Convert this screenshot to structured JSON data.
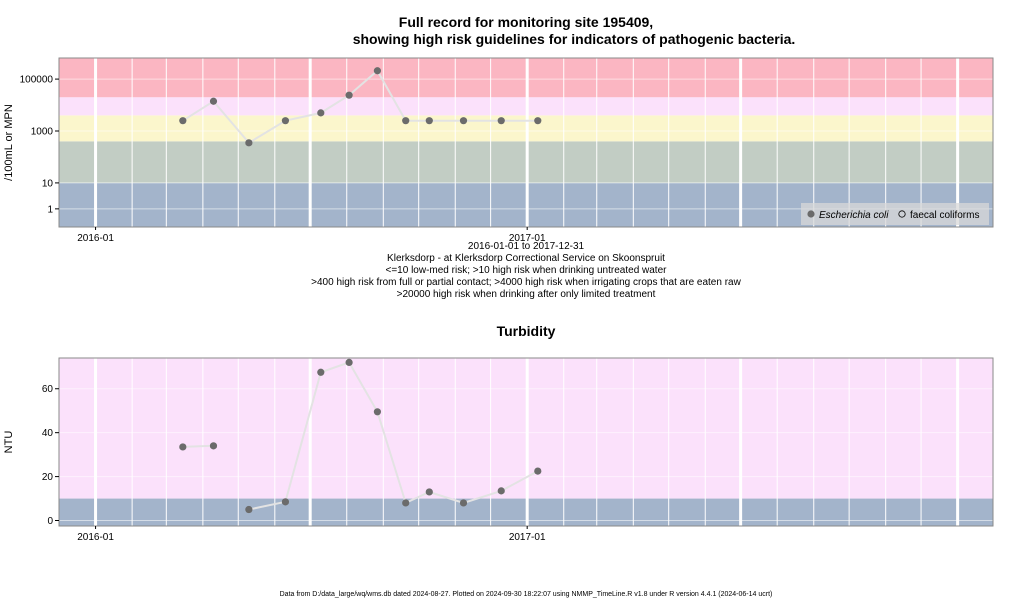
{
  "chart_data": [
    {
      "type": "scatter",
      "title_line1": "Full record for monitoring site 195409,",
      "title_line2": "showing high risk guidelines for indicators of pathogenic bacteria.",
      "ylabel": "/100mL or MPN",
      "y_scale": "log",
      "ylim": [
        0.2,
        650000
      ],
      "xlim": [
        "2015-12-01",
        "2018-01-31"
      ],
      "x_ticks": [
        {
          "date": "2016-01-01",
          "label": "2016-01",
          "label_shown": true
        },
        {
          "date": "2017-01-01",
          "label": "2017-01",
          "label_shown": true
        }
      ],
      "y_ticks": [
        {
          "value": 1,
          "label": "1"
        },
        {
          "value": 10,
          "label": "10"
        },
        {
          "value": 1000,
          "label": "1000"
        },
        {
          "value": 100000,
          "label": "100000"
        }
      ],
      "bands": [
        {
          "from": 0.2,
          "to": 10,
          "color": "#a3b4cb"
        },
        {
          "from": 10,
          "to": 400,
          "color": "#c2cdc4"
        },
        {
          "from": 400,
          "to": 4000,
          "color": "#fbf6cc"
        },
        {
          "from": 4000,
          "to": 20000,
          "color": "#fbe1fb"
        },
        {
          "from": 20000,
          "to": 650000,
          "color": "#fbb6c2"
        }
      ],
      "grid": true,
      "legend_position": "bottom-right",
      "series": [
        {
          "name": "Escherichia coli",
          "marker": "filled-circle",
          "color": "#6b6b6b",
          "line_color": "#e3e3e3",
          "x": [
            "2016-03-15",
            "2016-04-10",
            "2016-05-10",
            "2016-06-10",
            "2016-07-10",
            "2016-08-03",
            "2016-08-27",
            "2016-09-20",
            "2016-10-10",
            "2016-11-08",
            "2016-12-10",
            "2017-01-10"
          ],
          "y": [
            2500,
            14000,
            350,
            2500,
            5000,
            24000,
            210000,
            2500,
            2500,
            2500,
            2500,
            2500
          ]
        },
        {
          "name": "faecal coliforms",
          "marker": "open-circle",
          "color": "#000000",
          "x": [],
          "y": []
        }
      ],
      "annotations": [
        "2016-01-01 to 2017-12-31",
        "Klerksdorp - at Klerksdorp Correctional Service on Skoonspruit",
        "<=10 low-med risk; >10 high risk when drinking untreated water",
        ">400 high risk from full or partial contact; >4000 high risk when irrigating crops that are eaten raw",
        ">20000 high risk when drinking after only limited treatment"
      ]
    },
    {
      "type": "scatter",
      "title": "Turbidity",
      "ylabel": "NTU",
      "ylim": [
        -2.5,
        74
      ],
      "xlim": [
        "2015-12-01",
        "2018-01-31"
      ],
      "x_ticks": [
        {
          "date": "2016-01-01",
          "label": "2016-01",
          "label_shown": true
        },
        {
          "date": "2017-01-01",
          "label": "2017-01",
          "label_shown": true
        }
      ],
      "y_ticks": [
        {
          "value": 0,
          "label": "0"
        },
        {
          "value": 20,
          "label": "20"
        },
        {
          "value": 40,
          "label": "40"
        },
        {
          "value": 60,
          "label": "60"
        }
      ],
      "bands": [
        {
          "from": -2.5,
          "to": 10,
          "color": "#a3b4cb"
        },
        {
          "from": 10,
          "to": 74,
          "color": "#fbe1fb"
        }
      ],
      "grid": true,
      "series": [
        {
          "name": "Turbidity",
          "marker": "filled-circle",
          "color": "#6b6b6b",
          "line_color": "#e3e3e3",
          "x": [
            "2016-03-15",
            "2016-04-10",
            "2016-05-10",
            "2016-06-10",
            "2016-07-10",
            "2016-08-03",
            "2016-08-27",
            "2016-09-20",
            "2016-10-10",
            "2016-11-08",
            "2016-12-10",
            "2017-01-10"
          ],
          "y": [
            33.5,
            34,
            5,
            8.5,
            67.5,
            72,
            49.5,
            8,
            13,
            8,
            13.5,
            22.5
          ],
          "segments": [
            [
              0,
              1
            ],
            [
              2,
              11
            ]
          ]
        }
      ]
    }
  ],
  "footer": "Data from D:/data_large/wq/wms.db dated 2024-08-27. Plotted on 2024-09-30 18:22:07 using NMMP_TimeLine.R v1.8 under R version 4.4.1 (2024-06-14 ucrt)"
}
